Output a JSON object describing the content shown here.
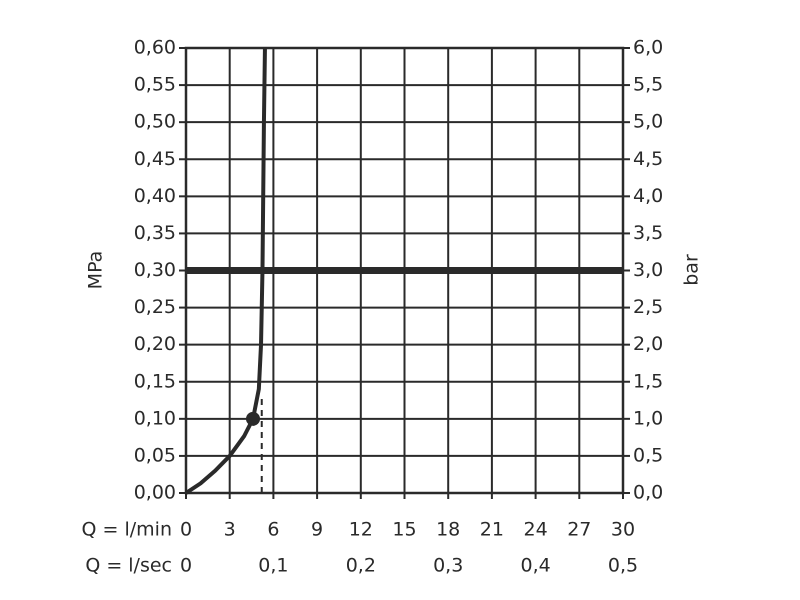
{
  "chart_data": {
    "type": "line",
    "y_label": "MPa",
    "y2_label": "bar",
    "x_label": "Q = l/min",
    "x2_label": "Q = l/sec",
    "series": [
      {
        "color": "#2a2a2a",
        "x": [
          0,
          1,
          2,
          3,
          4,
          4.6,
          5.0,
          5.15,
          5.25,
          5.3,
          5.35,
          5.42
        ],
        "values": [
          0,
          0.013,
          0.03,
          0.05,
          0.077,
          0.1,
          0.14,
          0.2,
          0.3,
          0.4,
          0.5,
          0.6
        ]
      }
    ],
    "point": {
      "x": 4.6,
      "y": 0.1
    },
    "reference_line": {
      "y": 0.3,
      "color": "#2a2a2a"
    },
    "dashed_line": {
      "x": 5.2,
      "y": [
        0,
        0.13
      ]
    },
    "xlim": [
      0,
      30
    ],
    "xticks": [
      0,
      3,
      6,
      9,
      12,
      15,
      18,
      21,
      24,
      27,
      30
    ],
    "x2lim": [
      0,
      0.5
    ],
    "x2ticks": [
      0,
      {
        "value": 0.1,
        "label": "0,1"
      },
      {
        "value": 0.2,
        "label": "0,2"
      },
      {
        "value": 0.3,
        "label": "0,3"
      },
      {
        "value": 0.4,
        "label": "0,4"
      },
      {
        "value": 0.5,
        "label": "0,5"
      }
    ],
    "ylim": [
      0,
      0.6
    ],
    "yticks": [
      {
        "value": 0,
        "label": "0,00"
      },
      {
        "value": 0.05,
        "label": "0,05"
      },
      {
        "value": 0.1,
        "label": "0,10"
      },
      {
        "value": 0.15,
        "label": "0,15"
      },
      {
        "value": 0.2,
        "label": "0,20"
      },
      {
        "value": 0.25,
        "label": "0,25"
      },
      {
        "value": 0.3,
        "label": "0,30"
      },
      {
        "value": 0.35,
        "label": "0,35"
      },
      {
        "value": 0.4,
        "label": "0,40"
      },
      {
        "value": 0.45,
        "label": "0,45"
      },
      {
        "value": 0.5,
        "label": "0,50"
      },
      {
        "value": 0.55,
        "label": "0,55"
      },
      {
        "value": 0.6,
        "label": "0,60"
      }
    ],
    "y2lim": [
      0,
      6
    ],
    "y2ticks": [
      {
        "value": 0,
        "label": "0,0"
      },
      {
        "value": 0.5,
        "label": "0,5"
      },
      {
        "value": 1,
        "label": "1,0"
      },
      {
        "value": 1.5,
        "label": "1,5"
      },
      {
        "value": 2,
        "label": "2,0"
      },
      {
        "value": 2.5,
        "label": "2,5"
      },
      {
        "value": 3,
        "label": "3,0"
      },
      {
        "value": 3.5,
        "label": "3,5"
      },
      {
        "value": 4,
        "label": "4,0"
      },
      {
        "value": 4.5,
        "label": "4,5"
      },
      {
        "value": 5,
        "label": "5,0"
      },
      {
        "value": 5.5,
        "label": "5,5"
      },
      {
        "value": 6,
        "label": "6,0"
      }
    ],
    "grid": true
  }
}
